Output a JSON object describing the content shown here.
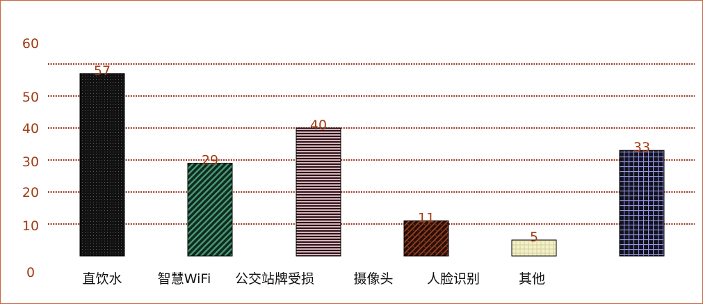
{
  "chart_data": {
    "type": "bar",
    "categories": [
      "直饮水",
      "智慧WiFi",
      "公交站牌受损",
      "摄像头",
      "人脸识别",
      "其他"
    ],
    "values": [
      57,
      29,
      40,
      11,
      5,
      33
    ],
    "y_tick_labels": [
      "0",
      "10",
      "20",
      "30",
      "40",
      "50",
      "60"
    ],
    "data_labels": [
      "57",
      "29",
      "40",
      "11",
      "5",
      "33"
    ],
    "title": "",
    "xlabel": "",
    "ylabel": "",
    "ylim": [
      0,
      60
    ],
    "grid": true,
    "grid_style": "dotted",
    "legend": "none",
    "colors": {
      "frame": "#c8643c",
      "grid": "#a0321e",
      "tick_text": "#a03c14",
      "category_text": "#111111",
      "bar_patterns": [
        {
          "pattern": "dots",
          "base": "#111111",
          "fg": "#555555"
        },
        {
          "pattern": "diagonal-stripes",
          "base": "#0f2a1e",
          "fg": "#4a9a78"
        },
        {
          "pattern": "horizontal-stripes",
          "base": "#2a1418",
          "fg": "#d6b4bc"
        },
        {
          "pattern": "diagonal-weave",
          "base": "#2a0f08",
          "fg": "#a04628"
        },
        {
          "pattern": "light-weave",
          "base": "#f4f1c8",
          "fg": "#d2cea0"
        },
        {
          "pattern": "grid",
          "base": "#12121e",
          "fg": "#9696e6"
        }
      ]
    }
  }
}
